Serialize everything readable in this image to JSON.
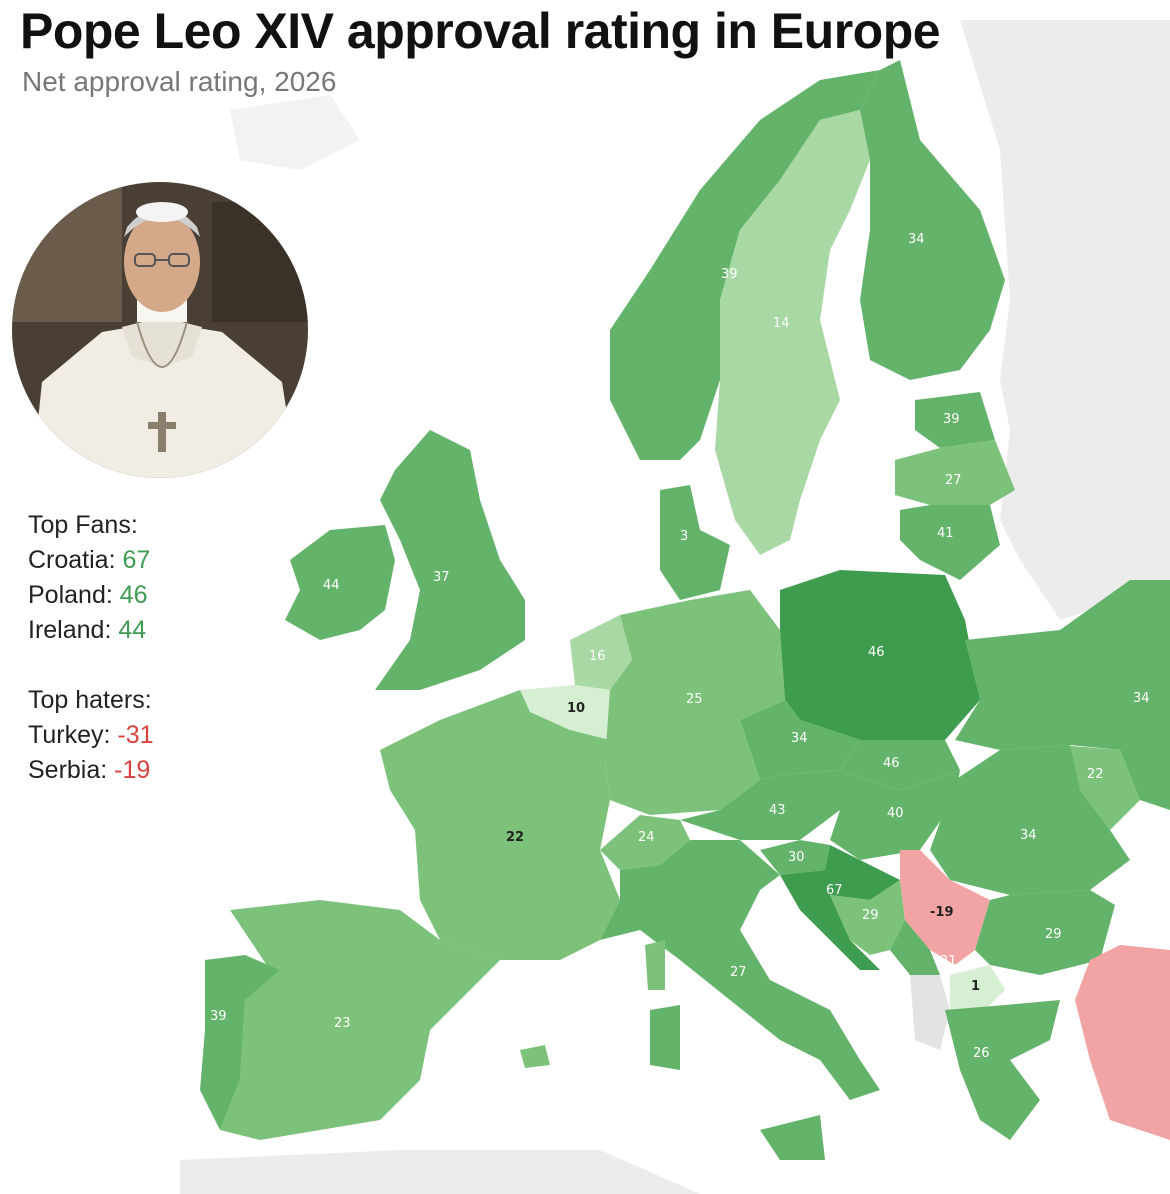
{
  "title": "Pope Leo XIV approval rating in Europe",
  "subtitle": "Net approval rating, 2026",
  "portrait_icon": "pope-portrait",
  "fans": {
    "heading": "Top Fans:",
    "items": [
      {
        "name": "Croatia:",
        "value": "67"
      },
      {
        "name": "Poland:",
        "value": "46"
      },
      {
        "name": "Ireland:",
        "value": "44"
      }
    ]
  },
  "haters": {
    "heading": "Top haters:",
    "items": [
      {
        "name": "Turkey:",
        "value": "-31"
      },
      {
        "name": "Serbia:",
        "value": "-19"
      }
    ]
  },
  "colors": {
    "very_high": "#3e9c4e",
    "high": "#64b36a",
    "mid": "#7cc27b",
    "low": "#a8d8a3",
    "very_low": "#d6eed2",
    "negative": "#f2a3a3",
    "no_data": "#ececec",
    "positive_text": "#3f9a52",
    "negative_text": "#d9423f"
  },
  "map_labels": {
    "norway": "39",
    "sweden": "14",
    "finland": "34",
    "estonia": "39",
    "latvia": "27",
    "lithuania": "41",
    "denmark": "3",
    "ireland": "44",
    "uk": "37",
    "netherlands": "16",
    "belgium": "10",
    "germany": "25",
    "poland": "46",
    "ukraine": "34",
    "czechia": "34",
    "slovakia": "46",
    "moldova": "22",
    "austria": "43",
    "hungary": "40",
    "romania": "34",
    "france": "22",
    "switzerland": "24",
    "slovenia": "30",
    "croatia": "67",
    "bosnia": "29",
    "serbia": "-19",
    "bulgaria": "29",
    "montenegro": "21",
    "macedonia": "1",
    "italy": "27",
    "portugal": "39",
    "spain": "23",
    "greece": "26"
  }
}
